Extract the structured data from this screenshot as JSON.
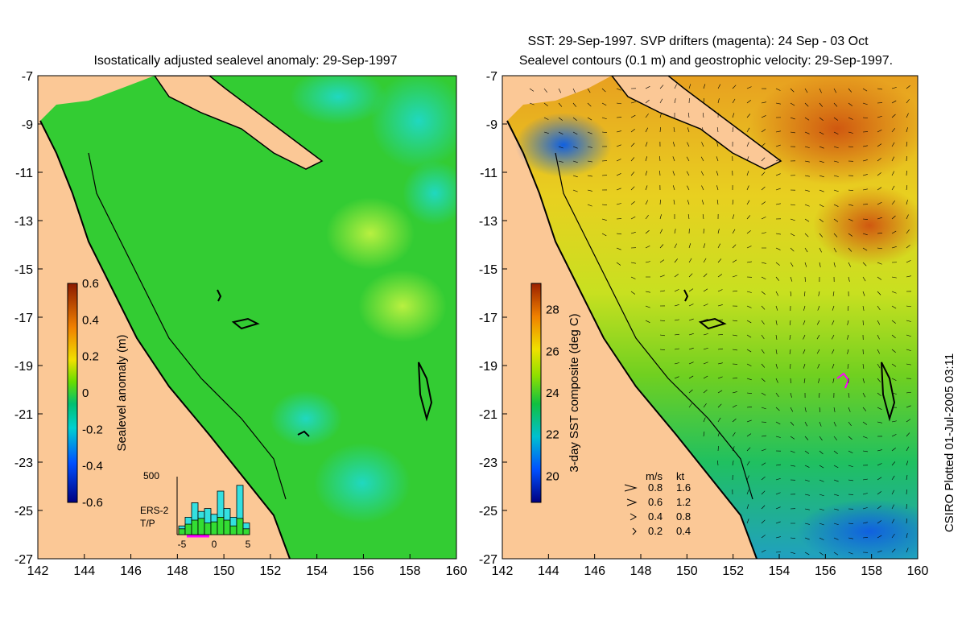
{
  "left_panel": {
    "title": "Isostatically adjusted sealevel anomaly: 29-Sep-1997",
    "colorbar_label": "Sealevel anomaly (m)",
    "colorbar_ticks": [
      "0.6",
      "0.4",
      "0.2",
      "0",
      "-0.2",
      "-0.4",
      "-0.6"
    ],
    "histogram": {
      "ymax_label": "500",
      "x_ticks": [
        "-5",
        "0",
        "5"
      ],
      "legend": [
        {
          "label": "ERS-2",
          "color": "#33e0e0"
        },
        {
          "label": "T/P",
          "color": "#33dd33"
        }
      ],
      "bars": [
        {
          "cyan": 0.15,
          "green": 0.1
        },
        {
          "cyan": 0.3,
          "green": 0.18
        },
        {
          "cyan": 0.55,
          "green": 0.25
        },
        {
          "cyan": 0.4,
          "green": 0.28
        },
        {
          "cyan": 0.45,
          "green": 0.2
        },
        {
          "cyan": 0.35,
          "green": 0.22
        },
        {
          "cyan": 0.75,
          "green": 0.3
        },
        {
          "cyan": 0.45,
          "green": 0.25
        },
        {
          "cyan": 0.3,
          "green": 0.15
        },
        {
          "cyan": 0.85,
          "green": 0.28
        },
        {
          "cyan": 0.2,
          "green": 0.1
        }
      ]
    }
  },
  "right_panel": {
    "title_line1": "SST: 29-Sep-1997. SVP drifters (magenta): 24 Sep - 03 Oct",
    "title_line2": "Sealevel contours (0.1 m) and geostrophic velocity: 29-Sep-1997.",
    "colorbar_label": "3-day SST composite (deg C)",
    "colorbar_ticks": [
      "28",
      "26",
      "24",
      "22",
      "20"
    ],
    "velocity_legend": {
      "header_ms": "m/s",
      "header_kt": "kt",
      "rows": [
        {
          "ms": "0.8",
          "kt": "1.6"
        },
        {
          "ms": "0.6",
          "kt": "1.2"
        },
        {
          "ms": "0.4",
          "kt": "0.8"
        },
        {
          "ms": "0.2",
          "kt": "0.4"
        }
      ]
    }
  },
  "axes": {
    "x_ticks": [
      "142",
      "144",
      "146",
      "148",
      "150",
      "152",
      "154",
      "156",
      "158",
      "160"
    ],
    "y_ticks": [
      "-7",
      "-9",
      "-11",
      "-13",
      "-15",
      "-17",
      "-19",
      "-21",
      "-23",
      "-25",
      "-27"
    ]
  },
  "credit": "CSIRO Plotted 01-Jul-2005 03:11",
  "colors": {
    "land": "#fbc896",
    "sea_green": "#33cc33",
    "sst_yellow": "#e8e020",
    "sst_orange": "#e07010"
  }
}
